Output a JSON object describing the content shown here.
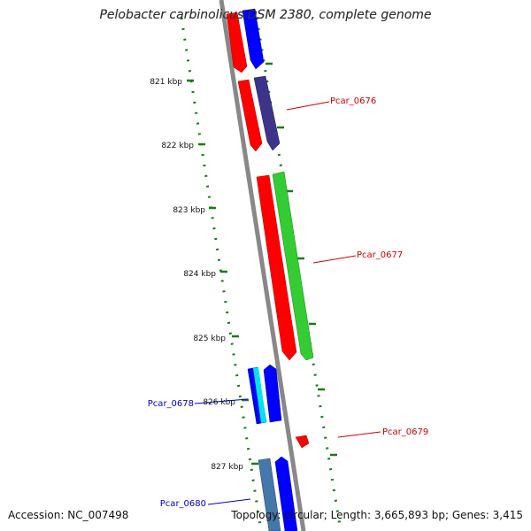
{
  "title": "Pelobacter carbinolicus DSM 2380, complete genome",
  "accession": "Accession: NC_007498",
  "topology": "Topology: circular; Length: 3,665,893 bp; Genes: 3,415",
  "scale_labels": [
    "821 kbp",
    "822 kbp",
    "823 kbp",
    "824 kbp",
    "825 kbp",
    "826 kbp",
    "827 kbp"
  ],
  "gene_labels": {
    "pcar_0676": "Pcar_0676",
    "pcar_0677": "Pcar_0677",
    "pcar_0678": "Pcar_0678",
    "pcar_0679": "Pcar_0679",
    "pcar_0680": "Pcar_0680"
  },
  "colors": {
    "backbone": "#888888",
    "ticks": "#1a7a1a",
    "label_red": "#cc0000",
    "label_blue": "#0000cc"
  }
}
